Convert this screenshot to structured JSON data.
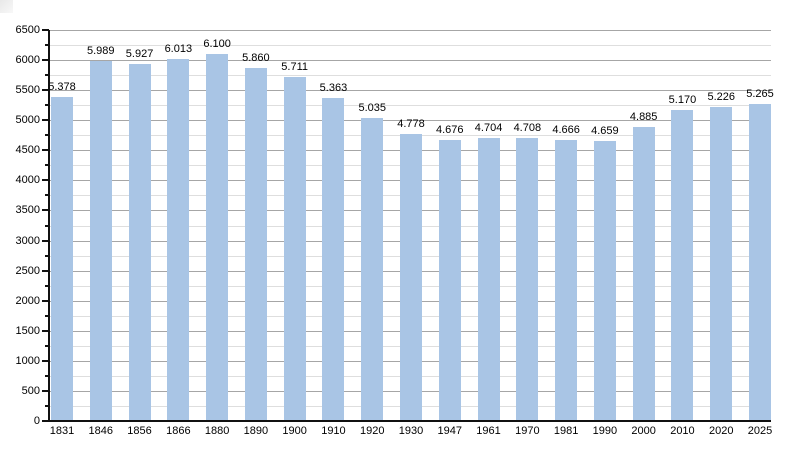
{
  "chart_data": {
    "type": "bar",
    "title": "",
    "xlabel": "",
    "ylabel": "",
    "categories": [
      "1831",
      "1846",
      "1856",
      "1866",
      "1880",
      "1890",
      "1900",
      "1910",
      "1920",
      "1930",
      "1947",
      "1961",
      "1970",
      "1981",
      "1990",
      "2000",
      "2010",
      "2020",
      "2025"
    ],
    "values": [
      5378,
      5989,
      5927,
      6013,
      6100,
      5860,
      5711,
      5363,
      5035,
      4778,
      4676,
      4704,
      4708,
      4666,
      4659,
      4885,
      5170,
      5226,
      5265
    ],
    "value_labels": [
      "5.378",
      "5.989",
      "5.927",
      "6.013",
      "6.100",
      "5.860",
      "5.711",
      "5.363",
      "5.035",
      "4.778",
      "4.676",
      "4.704",
      "4.708",
      "4.666",
      "4.659",
      "4.885",
      "5.170",
      "5.226",
      "5.265"
    ],
    "ylim": [
      0,
      6500
    ],
    "y_major_step": 500,
    "y_minor_step": 250,
    "y_tick_labels": [
      "0",
      "500",
      "1000",
      "1500",
      "2000",
      "2500",
      "3000",
      "3500",
      "4000",
      "4500",
      "5000",
      "5500",
      "6000",
      "6500"
    ],
    "grid": "on",
    "legend": "none",
    "bar_color": "#a9c5e5",
    "major_grid_color": "#a6a6a6",
    "minor_grid_color": "#dedede",
    "axis_color": "#111111",
    "text_color": "#000000"
  }
}
